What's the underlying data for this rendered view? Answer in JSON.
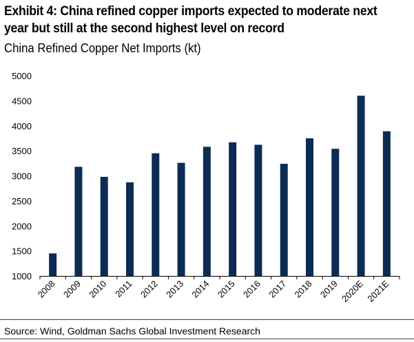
{
  "title": "Exhibit 4: China refined copper imports expected to moderate next year but still at the second highest level on record",
  "subtitle": "China Refined Copper Net Imports (kt)",
  "source": "Source: Wind, Goldman Sachs Global Investment Research",
  "colors": {
    "bar": "#0d2c54",
    "axis": "#000000",
    "text": "#000000"
  },
  "chart_data": {
    "type": "bar",
    "title": "China Refined Copper Net Imports (kt)",
    "xlabel": "",
    "ylabel": "",
    "categories": [
      "2008",
      "2009",
      "2010",
      "2011",
      "2012",
      "2013",
      "2014",
      "2015",
      "2016",
      "2017",
      "2018",
      "2019",
      "2020E",
      "2021E"
    ],
    "values": [
      1450,
      3180,
      2980,
      2870,
      3450,
      3260,
      3580,
      3670,
      3620,
      3240,
      3750,
      3540,
      4600,
      3890
    ],
    "ylim": [
      1000,
      5000
    ],
    "yticks": [
      "1000",
      "1500",
      "2000",
      "2500",
      "3000",
      "3500",
      "4000",
      "4500",
      "5000"
    ],
    "grid": false,
    "legend": "none"
  }
}
